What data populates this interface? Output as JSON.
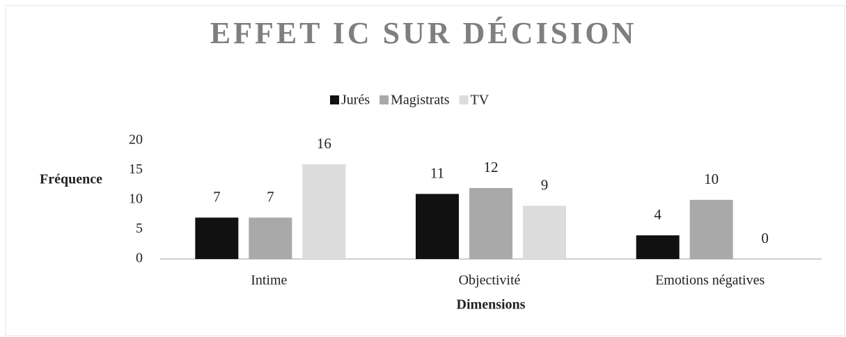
{
  "chart_data": {
    "type": "bar",
    "title": "EFFET IC SUR DÉCISION",
    "x_label": "Dimensions",
    "y_label": "Fréquence",
    "categories": [
      "Intime",
      "Objectivité",
      "Emotions négatives"
    ],
    "series": [
      {
        "name": "Jurés",
        "color": "#111111",
        "values": [
          7,
          11,
          4
        ]
      },
      {
        "name": "Magistrats",
        "color": "#a9a9a9",
        "values": [
          7,
          12,
          10
        ]
      },
      {
        "name": "TV",
        "color": "#dcdcdc",
        "values": [
          16,
          9,
          0
        ]
      }
    ],
    "ylim": [
      0,
      20
    ],
    "yticks": [
      0,
      5,
      10,
      15,
      20
    ],
    "grid": false,
    "legend": "top"
  }
}
